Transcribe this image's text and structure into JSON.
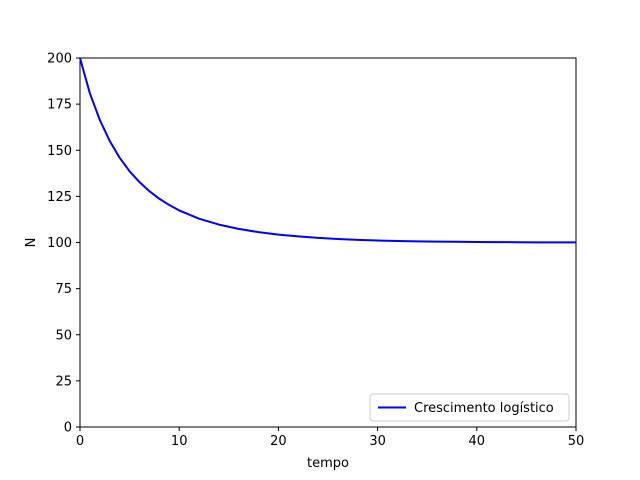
{
  "chart_data": {
    "type": "line",
    "title": "",
    "xlabel": "tempo",
    "ylabel": "N",
    "xlim": [
      0,
      50
    ],
    "ylim": [
      0,
      200
    ],
    "xticks": [
      0,
      10,
      20,
      30,
      40,
      50
    ],
    "yticks": [
      0,
      25,
      50,
      75,
      100,
      125,
      150,
      175,
      200
    ],
    "grid": false,
    "legend_position": "lower-right",
    "series": [
      {
        "name": "Crescimento logístico",
        "color": "#0000ff",
        "x": [
          0,
          1,
          2,
          3,
          4,
          5,
          6,
          7,
          8,
          9,
          10,
          12,
          14,
          16,
          18,
          20,
          22,
          24,
          26,
          28,
          30,
          32,
          34,
          36,
          38,
          40,
          42,
          44,
          46,
          48,
          50
        ],
        "y": [
          200,
          180.8,
          166.4,
          155.0,
          145.9,
          138.6,
          132.7,
          127.8,
          123.7,
          120.3,
          117.4,
          112.9,
          109.7,
          107.4,
          105.6,
          104.3,
          103.3,
          102.5,
          101.9,
          101.4,
          101.1,
          100.8,
          100.6,
          100.5,
          100.4,
          100.3,
          100.2,
          100.15,
          100.1,
          100.08,
          100.06
        ]
      }
    ]
  }
}
